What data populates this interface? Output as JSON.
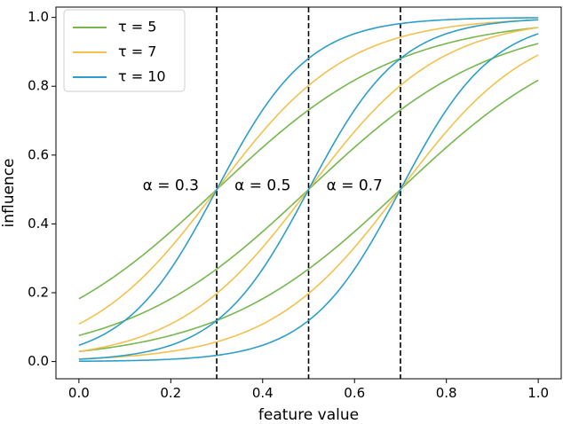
{
  "chart_data": {
    "type": "line",
    "title": "",
    "xlabel": "feature value",
    "ylabel": "influence",
    "xlim": [
      -0.05,
      1.05
    ],
    "ylim": [
      -0.05,
      1.03
    ],
    "xticks": [
      0.0,
      0.2,
      0.4,
      0.6,
      0.8,
      1.0
    ],
    "xtick_labels": [
      "0.0",
      "0.2",
      "0.4",
      "0.6",
      "0.8",
      "1.0"
    ],
    "yticks": [
      0.0,
      0.2,
      0.4,
      0.6,
      0.8,
      1.0
    ],
    "ytick_labels": [
      "0.0",
      "0.2",
      "0.4",
      "0.6",
      "0.8",
      "1.0"
    ],
    "grid": false,
    "legend_position": "top-left",
    "curve_function": "logistic: 1 / (1 + exp(-tau * (x - alpha)))",
    "x_samples": [
      0.0,
      0.05,
      0.1,
      0.15,
      0.2,
      0.25,
      0.3,
      0.35,
      0.4,
      0.45,
      0.5,
      0.55,
      0.6,
      0.65,
      0.7,
      0.75,
      0.8,
      0.85,
      0.9,
      0.95,
      1.0
    ],
    "series": [
      {
        "name": "τ = 5",
        "tau": 5,
        "color": "#77b74e",
        "curves": [
          {
            "alpha": 0.3,
            "y": [
              0.182,
              0.223,
              0.269,
              0.321,
              0.378,
              0.438,
              0.5,
              0.562,
              0.622,
              0.679,
              0.731,
              0.777,
              0.818,
              0.852,
              0.881,
              0.905,
              0.924,
              0.94,
              0.953,
              0.963,
              0.971
            ]
          },
          {
            "alpha": 0.5,
            "y": [
              0.076,
              0.095,
              0.119,
              0.148,
              0.182,
              0.223,
              0.269,
              0.321,
              0.378,
              0.438,
              0.5,
              0.562,
              0.622,
              0.679,
              0.731,
              0.777,
              0.818,
              0.852,
              0.881,
              0.905,
              0.924
            ]
          },
          {
            "alpha": 0.7,
            "y": [
              0.029,
              0.037,
              0.047,
              0.06,
              0.076,
              0.095,
              0.119,
              0.148,
              0.182,
              0.223,
              0.269,
              0.321,
              0.378,
              0.438,
              0.5,
              0.562,
              0.622,
              0.679,
              0.731,
              0.777,
              0.818
            ]
          }
        ]
      },
      {
        "name": "τ = 7",
        "tau": 7,
        "color": "#f2c14e",
        "curves": [
          {
            "alpha": 0.3,
            "y": [
              0.109,
              0.148,
              0.198,
              0.259,
              0.332,
              0.413,
              0.5,
              0.587,
              0.668,
              0.741,
              0.802,
              0.852,
              0.891,
              0.921,
              0.943,
              0.959,
              0.971,
              0.98,
              0.985,
              0.99,
              0.993
            ]
          },
          {
            "alpha": 0.5,
            "y": [
              0.029,
              0.041,
              0.057,
              0.08,
              0.109,
              0.148,
              0.198,
              0.259,
              0.332,
              0.413,
              0.5,
              0.587,
              0.668,
              0.741,
              0.802,
              0.852,
              0.891,
              0.921,
              0.943,
              0.959,
              0.971
            ]
          },
          {
            "alpha": 0.7,
            "y": [
              0.007,
              0.01,
              0.015,
              0.021,
              0.029,
              0.041,
              0.057,
              0.08,
              0.109,
              0.148,
              0.198,
              0.259,
              0.332,
              0.413,
              0.5,
              0.587,
              0.668,
              0.741,
              0.802,
              0.852,
              0.891
            ]
          }
        ]
      },
      {
        "name": "τ = 10",
        "tau": 10,
        "color": "#2c9ec9",
        "curves": [
          {
            "alpha": 0.3,
            "y": [
              0.047,
              0.076,
              0.119,
              0.182,
              0.269,
              0.378,
              0.5,
              0.622,
              0.731,
              0.818,
              0.881,
              0.924,
              0.953,
              0.971,
              0.982,
              0.989,
              0.993,
              0.996,
              0.998,
              0.998,
              0.999
            ]
          },
          {
            "alpha": 0.5,
            "y": [
              0.007,
              0.011,
              0.018,
              0.029,
              0.047,
              0.076,
              0.119,
              0.182,
              0.269,
              0.378,
              0.5,
              0.622,
              0.731,
              0.818,
              0.881,
              0.924,
              0.953,
              0.971,
              0.982,
              0.989,
              0.993
            ]
          },
          {
            "alpha": 0.7,
            "y": [
              0.001,
              0.002,
              0.002,
              0.004,
              0.007,
              0.011,
              0.018,
              0.029,
              0.047,
              0.076,
              0.119,
              0.182,
              0.269,
              0.378,
              0.5,
              0.622,
              0.731,
              0.818,
              0.881,
              0.924,
              0.953
            ]
          }
        ]
      }
    ],
    "vlines": [
      {
        "x": 0.3,
        "style": "dashed",
        "color": "#000000"
      },
      {
        "x": 0.5,
        "style": "dashed",
        "color": "#000000"
      },
      {
        "x": 0.7,
        "style": "dashed",
        "color": "#000000"
      }
    ],
    "annotations": [
      {
        "text": "α = 0.3",
        "x": 0.2,
        "y": 0.51
      },
      {
        "text": "α = 0.5",
        "x": 0.4,
        "y": 0.51
      },
      {
        "text": "α = 0.7",
        "x": 0.6,
        "y": 0.51
      }
    ]
  }
}
